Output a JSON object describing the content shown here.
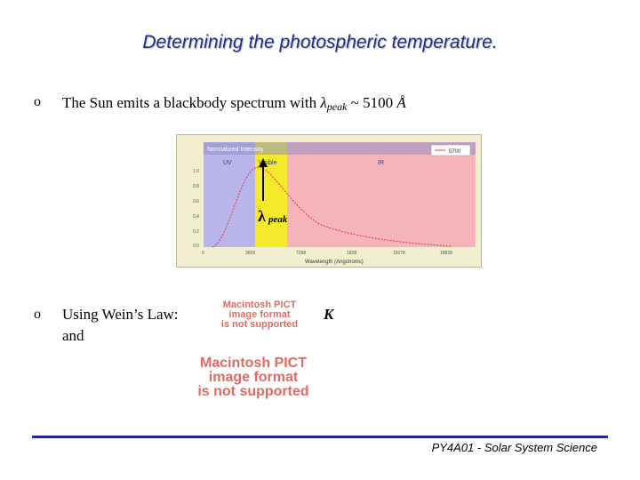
{
  "title": "Determining the photospheric temperature.",
  "bullet_symbol": "o",
  "line1": {
    "prefix": "The Sun emits a blackbody spectrum with ",
    "symbol": "λ",
    "subscript": "peak",
    "suffix": " ~ 5100 ",
    "unit": "Å"
  },
  "chart": {
    "ylabel": "Normalized Intensity",
    "legend": "5700",
    "regions": [
      "UV",
      "Visible",
      "IR"
    ],
    "xlabel": "Wavelength (Angstroms)",
    "x_ticks": [
      "0",
      "3658",
      "7298",
      "1828",
      "15078",
      "18828"
    ],
    "y_ticks": [
      "1.0",
      "0.8",
      "0.6",
      "0.4",
      "0.2",
      "0.0"
    ],
    "annotation_symbol": "λ",
    "annotation_subscript": "peak",
    "colors": {
      "uv": "#b9b5ea",
      "visible": "#f5ea2a",
      "ir": "#f5b4bb",
      "curve": "#e03c2e"
    }
  },
  "line2": {
    "text": "Using Wein’s Law:",
    "unit": "K"
  },
  "line3": {
    "text": "and"
  },
  "pict_placeholder": [
    "Macintosh PICT",
    "image format",
    "is not supported"
  ],
  "footer": "PY4A01 - Solar System Science"
}
